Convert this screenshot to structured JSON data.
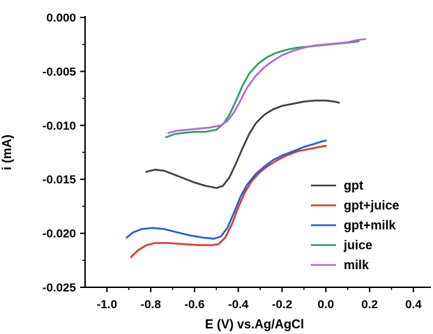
{
  "chart_data": {
    "type": "line",
    "title": "",
    "xlabel": "E (V) vs.Ag/AgCl",
    "ylabel": "i (mA)",
    "xlim": [
      -1.1,
      0.48
    ],
    "ylim": [
      -0.025,
      0.0
    ],
    "xticks": [
      -1.0,
      -0.8,
      -0.6,
      -0.4,
      -0.2,
      0.0,
      0.2,
      0.4
    ],
    "xtick_labels": [
      "-1.0",
      "-0.8",
      "-0.6",
      "-0.4",
      "-0.2",
      "0.0",
      "0.2",
      "0.4"
    ],
    "yticks": [
      0.0,
      -0.005,
      -0.01,
      -0.015,
      -0.02,
      -0.025
    ],
    "ytick_labels": [
      "0.000",
      "-0.005",
      "-0.010",
      "-0.015",
      "-0.020",
      "-0.025"
    ],
    "grid": false,
    "legend_position": "lower-right",
    "series": [
      {
        "name": "gpt",
        "color": "#404040",
        "points": [
          [
            -0.82,
            -0.0143
          ],
          [
            -0.78,
            -0.0141
          ],
          [
            -0.74,
            -0.0142
          ],
          [
            -0.7,
            -0.0145
          ],
          [
            -0.65,
            -0.0149
          ],
          [
            -0.6,
            -0.0153
          ],
          [
            -0.55,
            -0.0156
          ],
          [
            -0.5,
            -0.0158
          ],
          [
            -0.47,
            -0.0156
          ],
          [
            -0.44,
            -0.0148
          ],
          [
            -0.41,
            -0.0135
          ],
          [
            -0.38,
            -0.0121
          ],
          [
            -0.35,
            -0.0108
          ],
          [
            -0.32,
            -0.0098
          ],
          [
            -0.28,
            -0.009
          ],
          [
            -0.24,
            -0.0085
          ],
          [
            -0.2,
            -0.0082
          ],
          [
            -0.15,
            -0.008
          ],
          [
            -0.1,
            -0.0078
          ],
          [
            -0.05,
            -0.0077
          ],
          [
            0.0,
            -0.0077
          ],
          [
            0.04,
            -0.0078
          ],
          [
            0.06,
            -0.0079
          ]
        ]
      },
      {
        "name": "gpt+juice",
        "color": "#e8322c",
        "points": [
          [
            -0.89,
            -0.0222
          ],
          [
            -0.86,
            -0.0216
          ],
          [
            -0.82,
            -0.0211
          ],
          [
            -0.78,
            -0.0209
          ],
          [
            -0.72,
            -0.0209
          ],
          [
            -0.65,
            -0.021
          ],
          [
            -0.58,
            -0.0211
          ],
          [
            -0.52,
            -0.0211
          ],
          [
            -0.49,
            -0.021
          ],
          [
            -0.46,
            -0.0204
          ],
          [
            -0.43,
            -0.0192
          ],
          [
            -0.4,
            -0.0176
          ],
          [
            -0.37,
            -0.0162
          ],
          [
            -0.34,
            -0.0152
          ],
          [
            -0.3,
            -0.0143
          ],
          [
            -0.26,
            -0.0137
          ],
          [
            -0.22,
            -0.0132
          ],
          [
            -0.18,
            -0.0128
          ],
          [
            -0.13,
            -0.0124
          ],
          [
            -0.08,
            -0.0122
          ],
          [
            -0.03,
            -0.012
          ],
          [
            0.0,
            -0.0119
          ]
        ]
      },
      {
        "name": "gpt+milk",
        "color": "#1f5fde",
        "points": [
          [
            -0.91,
            -0.0204
          ],
          [
            -0.88,
            -0.0199
          ],
          [
            -0.84,
            -0.0196
          ],
          [
            -0.79,
            -0.0195
          ],
          [
            -0.74,
            -0.0196
          ],
          [
            -0.68,
            -0.0199
          ],
          [
            -0.62,
            -0.0202
          ],
          [
            -0.56,
            -0.0204
          ],
          [
            -0.51,
            -0.0205
          ],
          [
            -0.48,
            -0.0203
          ],
          [
            -0.45,
            -0.0195
          ],
          [
            -0.42,
            -0.0181
          ],
          [
            -0.39,
            -0.0166
          ],
          [
            -0.36,
            -0.0155
          ],
          [
            -0.32,
            -0.0145
          ],
          [
            -0.28,
            -0.0138
          ],
          [
            -0.24,
            -0.0132
          ],
          [
            -0.2,
            -0.0128
          ],
          [
            -0.15,
            -0.0124
          ],
          [
            -0.1,
            -0.012
          ],
          [
            -0.05,
            -0.0117
          ],
          [
            -0.02,
            -0.0115
          ],
          [
            0.0,
            -0.0114
          ]
        ]
      },
      {
        "name": "juice",
        "color": "#2ca05a",
        "points": [
          [
            -0.73,
            -0.0111
          ],
          [
            -0.69,
            -0.0108
          ],
          [
            -0.65,
            -0.0107
          ],
          [
            -0.6,
            -0.0106
          ],
          [
            -0.55,
            -0.0106
          ],
          [
            -0.5,
            -0.0104
          ],
          [
            -0.47,
            -0.0099
          ],
          [
            -0.44,
            -0.009
          ],
          [
            -0.41,
            -0.0077
          ],
          [
            -0.38,
            -0.0063
          ],
          [
            -0.35,
            -0.0052
          ],
          [
            -0.31,
            -0.0043
          ],
          [
            -0.27,
            -0.0037
          ],
          [
            -0.23,
            -0.0033
          ],
          [
            -0.18,
            -0.003
          ],
          [
            -0.13,
            -0.0028
          ],
          [
            -0.08,
            -0.0027
          ],
          [
            -0.03,
            -0.0026
          ],
          [
            0.02,
            -0.0025
          ],
          [
            0.07,
            -0.0024
          ],
          [
            0.12,
            -0.0023
          ],
          [
            0.15,
            -0.0022
          ]
        ]
      },
      {
        "name": "milk",
        "color": "#b266e0",
        "points": [
          [
            -0.72,
            -0.0107
          ],
          [
            -0.68,
            -0.0105
          ],
          [
            -0.63,
            -0.0104
          ],
          [
            -0.58,
            -0.0103
          ],
          [
            -0.53,
            -0.0102
          ],
          [
            -0.48,
            -0.01
          ],
          [
            -0.45,
            -0.0096
          ],
          [
            -0.42,
            -0.0088
          ],
          [
            -0.39,
            -0.0077
          ],
          [
            -0.36,
            -0.0065
          ],
          [
            -0.32,
            -0.0054
          ],
          [
            -0.28,
            -0.0046
          ],
          [
            -0.24,
            -0.004
          ],
          [
            -0.2,
            -0.0035
          ],
          [
            -0.15,
            -0.0031
          ],
          [
            -0.1,
            -0.0028
          ],
          [
            -0.05,
            -0.0026
          ],
          [
            0.0,
            -0.0025
          ],
          [
            0.05,
            -0.0024
          ],
          [
            0.1,
            -0.0023
          ],
          [
            0.14,
            -0.0021
          ],
          [
            0.18,
            -0.002
          ]
        ]
      }
    ]
  }
}
